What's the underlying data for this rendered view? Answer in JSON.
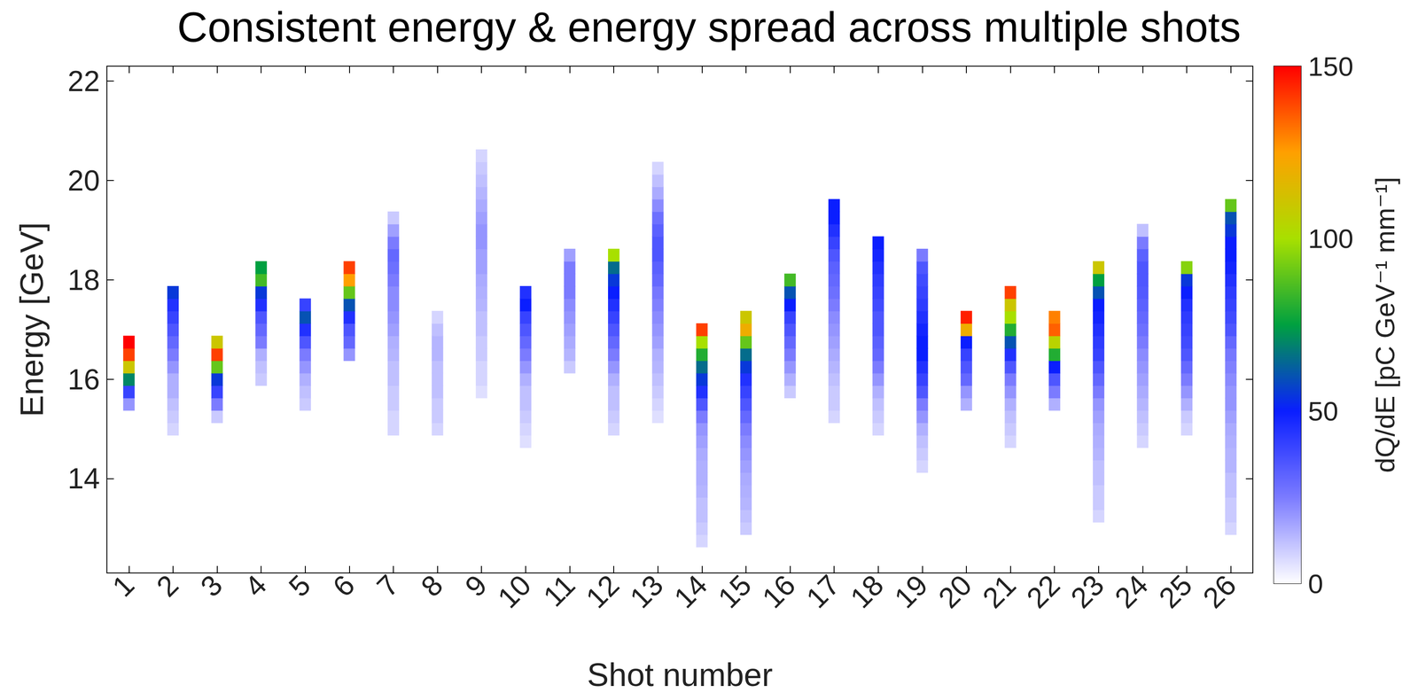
{
  "chart_data": {
    "type": "heatmap",
    "title": "Consistent energy & energy spread across multiple shots",
    "x_label": "Shot number",
    "y_label": "Energy [GeV]",
    "categories": [
      "1",
      "2",
      "3",
      "4",
      "5",
      "6",
      "7",
      "8",
      "9",
      "10",
      "11",
      "12",
      "13",
      "14",
      "15",
      "16",
      "17",
      "18",
      "19",
      "20",
      "21",
      "22",
      "23",
      "24",
      "25",
      "26"
    ],
    "bin_width": 0.25,
    "profiles": [
      [
        [
          15.5,
          20
        ],
        [
          15.75,
          40
        ],
        [
          16.0,
          70
        ],
        [
          16.25,
          110
        ],
        [
          16.5,
          140
        ],
        [
          16.75,
          150
        ]
      ],
      [
        [
          15.0,
          8
        ],
        [
          15.25,
          10
        ],
        [
          15.5,
          12
        ],
        [
          15.75,
          15
        ],
        [
          16.0,
          15
        ],
        [
          16.25,
          20
        ],
        [
          16.5,
          25
        ],
        [
          16.75,
          30
        ],
        [
          17.0,
          35
        ],
        [
          17.25,
          40
        ],
        [
          17.5,
          45
        ],
        [
          17.75,
          55
        ]
      ],
      [
        [
          15.25,
          10
        ],
        [
          15.5,
          25
        ],
        [
          15.75,
          40
        ],
        [
          16.0,
          55
        ],
        [
          16.25,
          90
        ],
        [
          16.5,
          140
        ],
        [
          16.75,
          110
        ]
      ],
      [
        [
          16.0,
          10
        ],
        [
          16.25,
          12
        ],
        [
          16.5,
          15
        ],
        [
          16.75,
          25
        ],
        [
          17.0,
          30
        ],
        [
          17.25,
          35
        ],
        [
          17.5,
          45
        ],
        [
          17.75,
          55
        ],
        [
          18.0,
          85
        ],
        [
          18.25,
          75
        ]
      ],
      [
        [
          15.5,
          10
        ],
        [
          15.75,
          12
        ],
        [
          16.0,
          15
        ],
        [
          16.25,
          20
        ],
        [
          16.5,
          25
        ],
        [
          16.75,
          35
        ],
        [
          17.0,
          45
        ],
        [
          17.25,
          60
        ],
        [
          17.5,
          40
        ]
      ],
      [
        [
          16.5,
          20
        ],
        [
          16.75,
          30
        ],
        [
          17.0,
          35
        ],
        [
          17.25,
          45
        ],
        [
          17.5,
          60
        ],
        [
          17.75,
          90
        ],
        [
          18.0,
          125
        ],
        [
          18.25,
          140
        ]
      ],
      [
        [
          15.0,
          8
        ],
        [
          15.25,
          8
        ],
        [
          15.5,
          10
        ],
        [
          15.75,
          10
        ],
        [
          16.0,
          12
        ],
        [
          16.25,
          12
        ],
        [
          16.5,
          14
        ],
        [
          16.75,
          15
        ],
        [
          17.0,
          18
        ],
        [
          17.25,
          20
        ],
        [
          17.5,
          22
        ],
        [
          17.75,
          22
        ],
        [
          18.0,
          25
        ],
        [
          18.25,
          28
        ],
        [
          18.5,
          30
        ],
        [
          18.75,
          25
        ],
        [
          19.0,
          18
        ],
        [
          19.25,
          10
        ]
      ],
      [
        [
          15.0,
          8
        ],
        [
          15.25,
          10
        ],
        [
          15.5,
          10
        ],
        [
          15.75,
          12
        ],
        [
          16.0,
          12
        ],
        [
          16.25,
          12
        ],
        [
          16.5,
          14
        ],
        [
          16.75,
          14
        ],
        [
          17.0,
          12
        ],
        [
          17.25,
          8
        ]
      ],
      [
        [
          15.75,
          6
        ],
        [
          16.0,
          8
        ],
        [
          16.25,
          8
        ],
        [
          16.5,
          10
        ],
        [
          16.75,
          10
        ],
        [
          17.0,
          12
        ],
        [
          17.25,
          12
        ],
        [
          17.5,
          14
        ],
        [
          17.75,
          15
        ],
        [
          18.0,
          16
        ],
        [
          18.25,
          18
        ],
        [
          18.5,
          18
        ],
        [
          18.75,
          20
        ],
        [
          19.0,
          20
        ],
        [
          19.25,
          18
        ],
        [
          19.5,
          16
        ],
        [
          19.75,
          14
        ],
        [
          20.0,
          12
        ],
        [
          20.25,
          10
        ],
        [
          20.5,
          8
        ]
      ],
      [
        [
          14.75,
          6
        ],
        [
          15.0,
          8
        ],
        [
          15.25,
          10
        ],
        [
          15.5,
          12
        ],
        [
          15.75,
          12
        ],
        [
          16.0,
          15
        ],
        [
          16.25,
          20
        ],
        [
          16.5,
          25
        ],
        [
          16.75,
          30
        ],
        [
          17.0,
          35
        ],
        [
          17.25,
          40
        ],
        [
          17.5,
          50
        ],
        [
          17.75,
          45
        ]
      ],
      [
        [
          16.25,
          10
        ],
        [
          16.5,
          14
        ],
        [
          16.75,
          16
        ],
        [
          17.0,
          18
        ],
        [
          17.25,
          20
        ],
        [
          17.5,
          22
        ],
        [
          17.75,
          25
        ],
        [
          18.0,
          25
        ],
        [
          18.25,
          25
        ],
        [
          18.5,
          18
        ]
      ],
      [
        [
          15.0,
          8
        ],
        [
          15.25,
          10
        ],
        [
          15.5,
          12
        ],
        [
          15.75,
          12
        ],
        [
          16.0,
          15
        ],
        [
          16.25,
          20
        ],
        [
          16.5,
          25
        ],
        [
          16.75,
          30
        ],
        [
          17.0,
          35
        ],
        [
          17.25,
          40
        ],
        [
          17.5,
          45
        ],
        [
          17.75,
          50
        ],
        [
          18.0,
          55
        ],
        [
          18.25,
          65
        ],
        [
          18.5,
          100
        ]
      ],
      [
        [
          15.25,
          6
        ],
        [
          15.5,
          8
        ],
        [
          15.75,
          10
        ],
        [
          16.0,
          12
        ],
        [
          16.25,
          14
        ],
        [
          16.5,
          15
        ],
        [
          16.75,
          18
        ],
        [
          17.0,
          20
        ],
        [
          17.25,
          22
        ],
        [
          17.5,
          24
        ],
        [
          17.75,
          26
        ],
        [
          18.0,
          30
        ],
        [
          18.25,
          32
        ],
        [
          18.5,
          35
        ],
        [
          18.75,
          35
        ],
        [
          19.0,
          32
        ],
        [
          19.25,
          28
        ],
        [
          19.5,
          22
        ],
        [
          19.75,
          16
        ],
        [
          20.0,
          12
        ],
        [
          20.25,
          8
        ]
      ],
      [
        [
          12.75,
          8
        ],
        [
          13.0,
          10
        ],
        [
          13.25,
          12
        ],
        [
          13.5,
          12
        ],
        [
          13.75,
          14
        ],
        [
          14.0,
          15
        ],
        [
          14.25,
          15
        ],
        [
          14.5,
          16
        ],
        [
          14.75,
          18
        ],
        [
          15.0,
          20
        ],
        [
          15.25,
          25
        ],
        [
          15.5,
          35
        ],
        [
          15.75,
          45
        ],
        [
          16.0,
          55
        ],
        [
          16.25,
          65
        ],
        [
          16.5,
          80
        ],
        [
          16.75,
          100
        ],
        [
          17.0,
          140
        ]
      ],
      [
        [
          13.0,
          10
        ],
        [
          13.25,
          12
        ],
        [
          13.5,
          14
        ],
        [
          13.75,
          15
        ],
        [
          14.0,
          16
        ],
        [
          14.25,
          18
        ],
        [
          14.5,
          20
        ],
        [
          14.75,
          22
        ],
        [
          15.0,
          25
        ],
        [
          15.25,
          30
        ],
        [
          15.5,
          35
        ],
        [
          15.75,
          40
        ],
        [
          16.0,
          45
        ],
        [
          16.25,
          55
        ],
        [
          16.5,
          65
        ],
        [
          16.75,
          90
        ],
        [
          17.0,
          120
        ],
        [
          17.25,
          110
        ]
      ],
      [
        [
          15.75,
          10
        ],
        [
          16.0,
          15
        ],
        [
          16.25,
          20
        ],
        [
          16.5,
          25
        ],
        [
          16.75,
          30
        ],
        [
          17.0,
          35
        ],
        [
          17.25,
          40
        ],
        [
          17.5,
          50
        ],
        [
          17.75,
          60
        ],
        [
          18.0,
          85
        ]
      ],
      [
        [
          15.25,
          8
        ],
        [
          15.5,
          10
        ],
        [
          15.75,
          10
        ],
        [
          16.0,
          12
        ],
        [
          16.25,
          14
        ],
        [
          16.5,
          16
        ],
        [
          16.75,
          18
        ],
        [
          17.0,
          20
        ],
        [
          17.25,
          22
        ],
        [
          17.5,
          25
        ],
        [
          17.75,
          28
        ],
        [
          18.0,
          30
        ],
        [
          18.25,
          32
        ],
        [
          18.5,
          35
        ],
        [
          18.75,
          40
        ],
        [
          19.0,
          45
        ],
        [
          19.25,
          50
        ],
        [
          19.5,
          50
        ]
      ],
      [
        [
          15.0,
          8
        ],
        [
          15.25,
          10
        ],
        [
          15.5,
          12
        ],
        [
          15.75,
          15
        ],
        [
          16.0,
          20
        ],
        [
          16.25,
          25
        ],
        [
          16.5,
          30
        ],
        [
          16.75,
          32
        ],
        [
          17.0,
          35
        ],
        [
          17.25,
          35
        ],
        [
          17.5,
          38
        ],
        [
          17.75,
          40
        ],
        [
          18.0,
          42
        ],
        [
          18.25,
          45
        ],
        [
          18.5,
          48
        ],
        [
          18.75,
          50
        ]
      ],
      [
        [
          14.25,
          8
        ],
        [
          14.5,
          10
        ],
        [
          14.75,
          12
        ],
        [
          15.0,
          15
        ],
        [
          15.25,
          20
        ],
        [
          15.5,
          25
        ],
        [
          15.75,
          35
        ],
        [
          16.0,
          40
        ],
        [
          16.25,
          45
        ],
        [
          16.5,
          50
        ],
        [
          16.75,
          50
        ],
        [
          17.0,
          48
        ],
        [
          17.25,
          45
        ],
        [
          17.5,
          42
        ],
        [
          17.75,
          40
        ],
        [
          18.0,
          38
        ],
        [
          18.25,
          35
        ],
        [
          18.5,
          25
        ]
      ],
      [
        [
          15.5,
          15
        ],
        [
          15.75,
          20
        ],
        [
          16.0,
          30
        ],
        [
          16.25,
          35
        ],
        [
          16.5,
          40
        ],
        [
          16.75,
          50
        ],
        [
          17.0,
          120
        ],
        [
          17.25,
          145
        ]
      ],
      [
        [
          14.75,
          8
        ],
        [
          15.0,
          10
        ],
        [
          15.25,
          12
        ],
        [
          15.5,
          15
        ],
        [
          15.75,
          20
        ],
        [
          16.0,
          25
        ],
        [
          16.25,
          35
        ],
        [
          16.5,
          45
        ],
        [
          16.75,
          60
        ],
        [
          17.0,
          80
        ],
        [
          17.25,
          100
        ],
        [
          17.5,
          110
        ],
        [
          17.75,
          140
        ]
      ],
      [
        [
          15.5,
          15
        ],
        [
          15.75,
          25
        ],
        [
          16.0,
          35
        ],
        [
          16.25,
          50
        ],
        [
          16.5,
          80
        ],
        [
          16.75,
          105
        ],
        [
          17.0,
          135
        ],
        [
          17.25,
          130
        ]
      ],
      [
        [
          13.25,
          8
        ],
        [
          13.5,
          10
        ],
        [
          13.75,
          10
        ],
        [
          14.0,
          12
        ],
        [
          14.25,
          12
        ],
        [
          14.5,
          14
        ],
        [
          14.75,
          15
        ],
        [
          15.0,
          16
        ],
        [
          15.25,
          18
        ],
        [
          15.5,
          20
        ],
        [
          15.75,
          25
        ],
        [
          16.0,
          30
        ],
        [
          16.25,
          35
        ],
        [
          16.5,
          40
        ],
        [
          16.75,
          42
        ],
        [
          17.0,
          45
        ],
        [
          17.25,
          48
        ],
        [
          17.5,
          50
        ],
        [
          17.75,
          60
        ],
        [
          18.0,
          75
        ],
        [
          18.25,
          110
        ]
      ],
      [
        [
          14.75,
          8
        ],
        [
          15.0,
          10
        ],
        [
          15.25,
          12
        ],
        [
          15.5,
          14
        ],
        [
          15.75,
          16
        ],
        [
          16.0,
          18
        ],
        [
          16.25,
          20
        ],
        [
          16.5,
          22
        ],
        [
          16.75,
          25
        ],
        [
          17.0,
          28
        ],
        [
          17.25,
          30
        ],
        [
          17.5,
          32
        ],
        [
          17.75,
          34
        ],
        [
          18.0,
          35
        ],
        [
          18.25,
          35
        ],
        [
          18.5,
          32
        ],
        [
          18.75,
          25
        ],
        [
          19.0,
          12
        ]
      ],
      [
        [
          15.0,
          8
        ],
        [
          15.25,
          10
        ],
        [
          15.5,
          15
        ],
        [
          15.75,
          20
        ],
        [
          16.0,
          25
        ],
        [
          16.25,
          30
        ],
        [
          16.5,
          35
        ],
        [
          16.75,
          38
        ],
        [
          17.0,
          40
        ],
        [
          17.25,
          42
        ],
        [
          17.5,
          45
        ],
        [
          17.75,
          50
        ],
        [
          18.0,
          55
        ],
        [
          18.25,
          95
        ]
      ],
      [
        [
          13.0,
          8
        ],
        [
          13.25,
          10
        ],
        [
          13.5,
          10
        ],
        [
          13.75,
          12
        ],
        [
          14.0,
          12
        ],
        [
          14.25,
          14
        ],
        [
          14.5,
          14
        ],
        [
          14.75,
          15
        ],
        [
          15.0,
          16
        ],
        [
          15.25,
          18
        ],
        [
          15.5,
          20
        ],
        [
          15.75,
          20
        ],
        [
          16.0,
          22
        ],
        [
          16.25,
          24
        ],
        [
          16.5,
          26
        ],
        [
          16.75,
          30
        ],
        [
          17.0,
          35
        ],
        [
          17.25,
          38
        ],
        [
          17.5,
          40
        ],
        [
          17.75,
          42
        ],
        [
          18.0,
          45
        ],
        [
          18.25,
          48
        ],
        [
          18.5,
          50
        ],
        [
          18.75,
          50
        ],
        [
          19.0,
          55
        ],
        [
          19.25,
          60
        ],
        [
          19.5,
          90
        ]
      ]
    ],
    "ylim": [
      12.1,
      22.3
    ],
    "yticks": [
      14,
      16,
      18,
      20,
      22
    ],
    "grid": false,
    "colorbar": {
      "label": "dQ/dE [pC GeV⁻¹ mm⁻¹]",
      "range": [
        0,
        150
      ],
      "ticks": [
        0,
        50,
        100,
        150
      ],
      "colors": [
        "#ffffff",
        "#7b7bff",
        "#0a1eff",
        "#00a040",
        "#a8e000",
        "#ffa000",
        "#ff0000"
      ]
    }
  }
}
